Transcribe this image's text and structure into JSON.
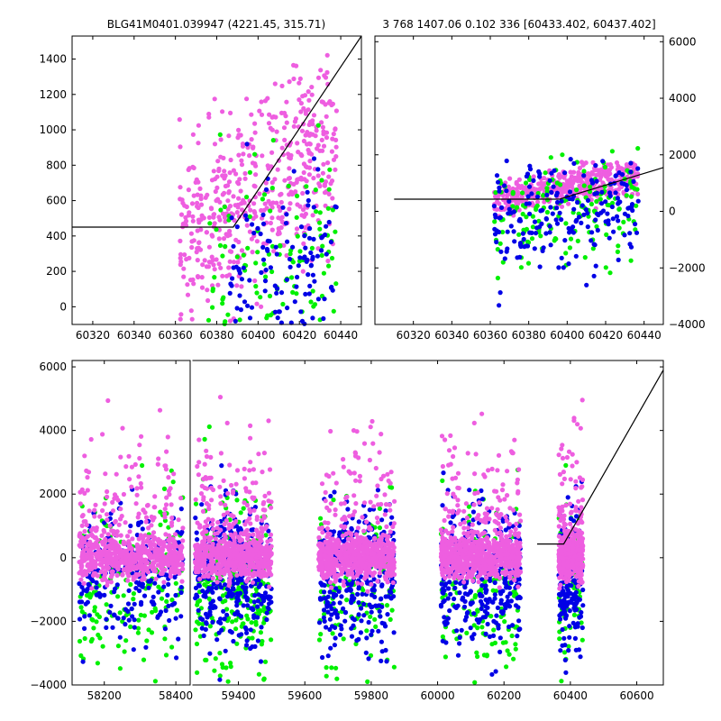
{
  "titles": {
    "left": "BLG41M0401.039947 (4221.45, 315.71)",
    "right": "3 768 1407.06 0.102 336 [60433.402, 60437.402]"
  },
  "colors": {
    "magenta": "#ee5ee0",
    "green": "#00f000",
    "blue": "#0000e6",
    "model": "#000000"
  },
  "chart_data": [
    {
      "type": "scatter",
      "panel": "top-left",
      "title": "BLG41M0401.039947 (4221.45, 315.71)",
      "xlim": [
        60310,
        60450
      ],
      "ylim": [
        -100,
        1530
      ],
      "xticks": [
        60320,
        60340,
        60360,
        60380,
        60400,
        60420,
        60440
      ],
      "yticks": [
        0,
        200,
        400,
        600,
        800,
        1000,
        1200,
        1400
      ],
      "xticklabels": [
        "60320",
        "60340",
        "60360",
        "60380",
        "60400",
        "60420",
        "60440"
      ],
      "yticklabels": [
        "0",
        "200",
        "400",
        "600",
        "800",
        "1000",
        "1200",
        "1400"
      ],
      "yaxis_side": "left",
      "model_line": {
        "x": [
          60310,
          60388,
          60450
        ],
        "y": [
          450,
          450,
          1530
        ]
      },
      "series": [
        {
          "color": "magenta",
          "x_range": [
            60362,
            60438
          ],
          "y_base": 350,
          "slope": 8,
          "noise": 260,
          "n": 520
        },
        {
          "color": "green",
          "x_range": [
            60375,
            60438
          ],
          "y_base": 80,
          "slope": 5,
          "noise": 280,
          "n": 120
        },
        {
          "color": "blue",
          "x_range": [
            60385,
            60438
          ],
          "y_base": 60,
          "slope": 4,
          "noise": 260,
          "n": 140
        }
      ]
    },
    {
      "type": "scatter",
      "panel": "top-right",
      "title": "3 768 1407.06 0.102 336 [60433.402, 60437.402]",
      "xlim": [
        60300,
        60450
      ],
      "ylim": [
        -4000,
        6200
      ],
      "xticks": [
        60320,
        60340,
        60360,
        60380,
        60400,
        60420,
        60440
      ],
      "yticks": [
        -4000,
        -2000,
        0,
        2000,
        4000,
        6000
      ],
      "xticklabels": [
        "60320",
        "60340",
        "60360",
        "60380",
        "60400",
        "60420",
        "60440"
      ],
      "yticklabels": [
        "−4000",
        "−2000",
        "0",
        "2000",
        "4000",
        "6000"
      ],
      "yaxis_side": "right",
      "model_line": {
        "x": [
          60310,
          60396,
          60450
        ],
        "y": [
          430,
          430,
          1550
        ]
      },
      "series": [
        {
          "color": "magenta",
          "x_range": [
            60362,
            60437
          ],
          "y_base": 380,
          "slope": 12,
          "noise": 320,
          "n": 420
        },
        {
          "color": "green",
          "x_range": [
            60362,
            60437
          ],
          "y_base": -300,
          "slope": 8,
          "noise": 900,
          "n": 160
        },
        {
          "color": "blue",
          "x_range": [
            60362,
            60437
          ],
          "y_base": -350,
          "slope": 8,
          "noise": 900,
          "n": 200
        }
      ]
    },
    {
      "type": "scatter",
      "panel": "bottom",
      "xlim": [
        58110,
        60680
      ],
      "ylim": [
        -4000,
        6200
      ],
      "xticks": [
        58200,
        58400,
        59400,
        59600,
        59800,
        60000,
        60200,
        60400,
        60600
      ],
      "yticks": [
        -4000,
        -2000,
        0,
        2000,
        4000,
        6000
      ],
      "xticklabels": [
        "58200",
        "58400",
        "59400",
        "59600",
        "59800",
        "60000",
        "60200",
        "60400",
        "60600"
      ],
      "yticklabels": [
        "−4000",
        "−2000",
        "0",
        "2000",
        "4000",
        "6000"
      ],
      "axis_break": {
        "from": 58440,
        "to": 59260
      },
      "model_line": {
        "x": [
          60300,
          60380,
          60680
        ],
        "y": [
          430,
          430,
          5900
        ]
      },
      "clusters": [
        {
          "x_range": [
            58130,
            58420
          ],
          "magenta_n": 700,
          "green_n": 170,
          "blue_n": 230
        },
        {
          "x_range": [
            59270,
            59500
          ],
          "magenta_n": 700,
          "green_n": 260,
          "blue_n": 330
        },
        {
          "x_range": [
            59640,
            59870
          ],
          "magenta_n": 700,
          "green_n": 140,
          "blue_n": 330
        },
        {
          "x_range": [
            60010,
            60250
          ],
          "magenta_n": 700,
          "green_n": 150,
          "blue_n": 330
        },
        {
          "x_range": [
            60365,
            60438
          ],
          "magenta_n": 450,
          "green_n": 80,
          "blue_n": 170
        }
      ]
    }
  ]
}
